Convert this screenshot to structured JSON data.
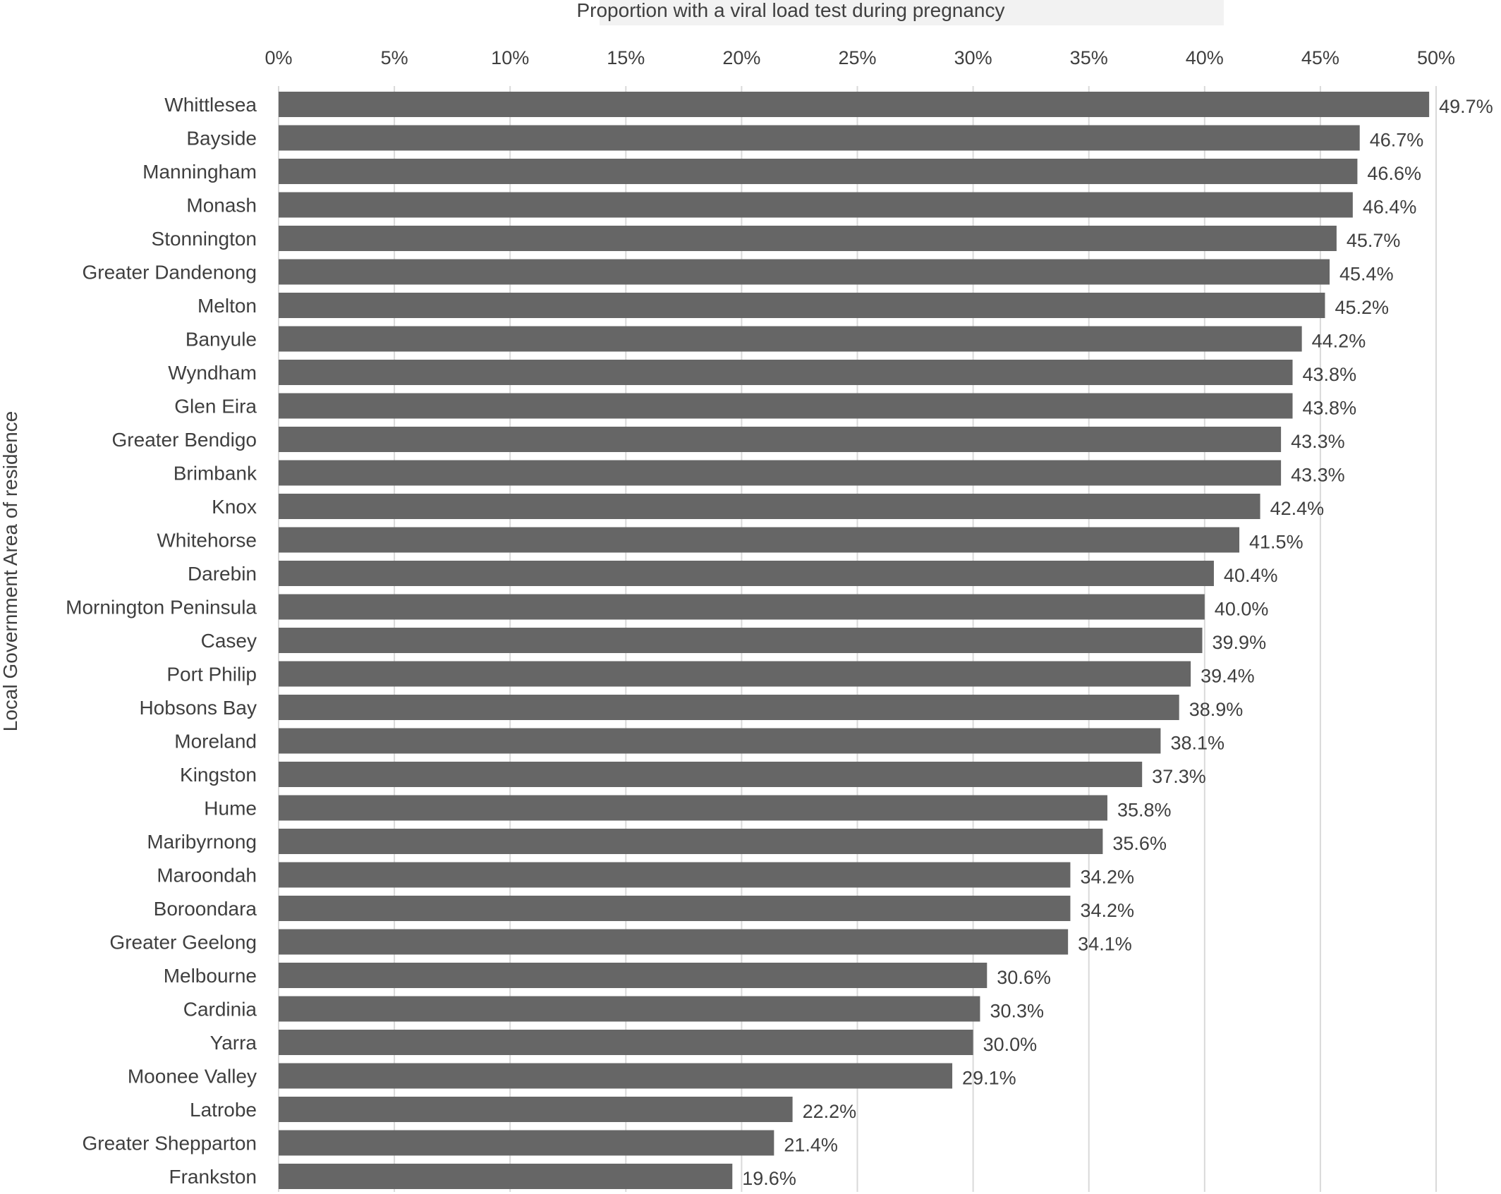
{
  "chart_data": {
    "type": "bar",
    "orientation": "horizontal",
    "xlabel": "Proportion with a viral load test during pregnancy",
    "ylabel": "Local Government Area of residence",
    "xlim": [
      0,
      50
    ],
    "x_ticks": [
      "0%",
      "5%",
      "10%",
      "15%",
      "20%",
      "25%",
      "30%",
      "35%",
      "40%",
      "45%",
      "50%"
    ],
    "x_axis_position": "top",
    "grid": true,
    "legend": "none",
    "bar_color": "#666666",
    "categories": [
      "Whittlesea",
      "Bayside",
      "Manningham",
      "Monash",
      "Stonnington",
      "Greater Dandenong",
      "Melton",
      "Banyule",
      "Wyndham",
      "Glen Eira",
      "Greater Bendigo",
      "Brimbank",
      "Knox",
      "Whitehorse",
      "Darebin",
      "Mornington Peninsula",
      "Casey",
      "Port Philip",
      "Hobsons Bay",
      "Moreland",
      "Kingston",
      "Hume",
      "Maribyrnong",
      "Maroondah",
      "Boroondara",
      "Greater Geelong",
      "Melbourne",
      "Cardinia",
      "Yarra",
      "Moonee Valley",
      "Latrobe",
      "Greater Shepparton",
      "Frankston"
    ],
    "values": [
      49.7,
      46.7,
      46.6,
      46.4,
      45.7,
      45.4,
      45.2,
      44.2,
      43.8,
      43.8,
      43.3,
      43.3,
      42.4,
      41.5,
      40.4,
      40.0,
      39.9,
      39.4,
      38.9,
      38.1,
      37.3,
      35.8,
      35.6,
      34.2,
      34.2,
      34.1,
      30.6,
      30.3,
      30.0,
      29.1,
      22.2,
      21.4,
      19.6
    ],
    "data_labels": [
      "49.7%",
      "46.7%",
      "46.6%",
      "46.4%",
      "45.7%",
      "45.4%",
      "45.2%",
      "44.2%",
      "43.8%",
      "43.8%",
      "43.3%",
      "43.3%",
      "42.4%",
      "41.5%",
      "40.4%",
      "40.0%",
      "39.9%",
      "39.4%",
      "38.9%",
      "38.1%",
      "37.3%",
      "35.8%",
      "35.6%",
      "34.2%",
      "34.2%",
      "34.1%",
      "30.6%",
      "30.3%",
      "30.0%",
      "29.1%",
      "22.2%",
      "21.4%",
      "19.6%"
    ]
  }
}
